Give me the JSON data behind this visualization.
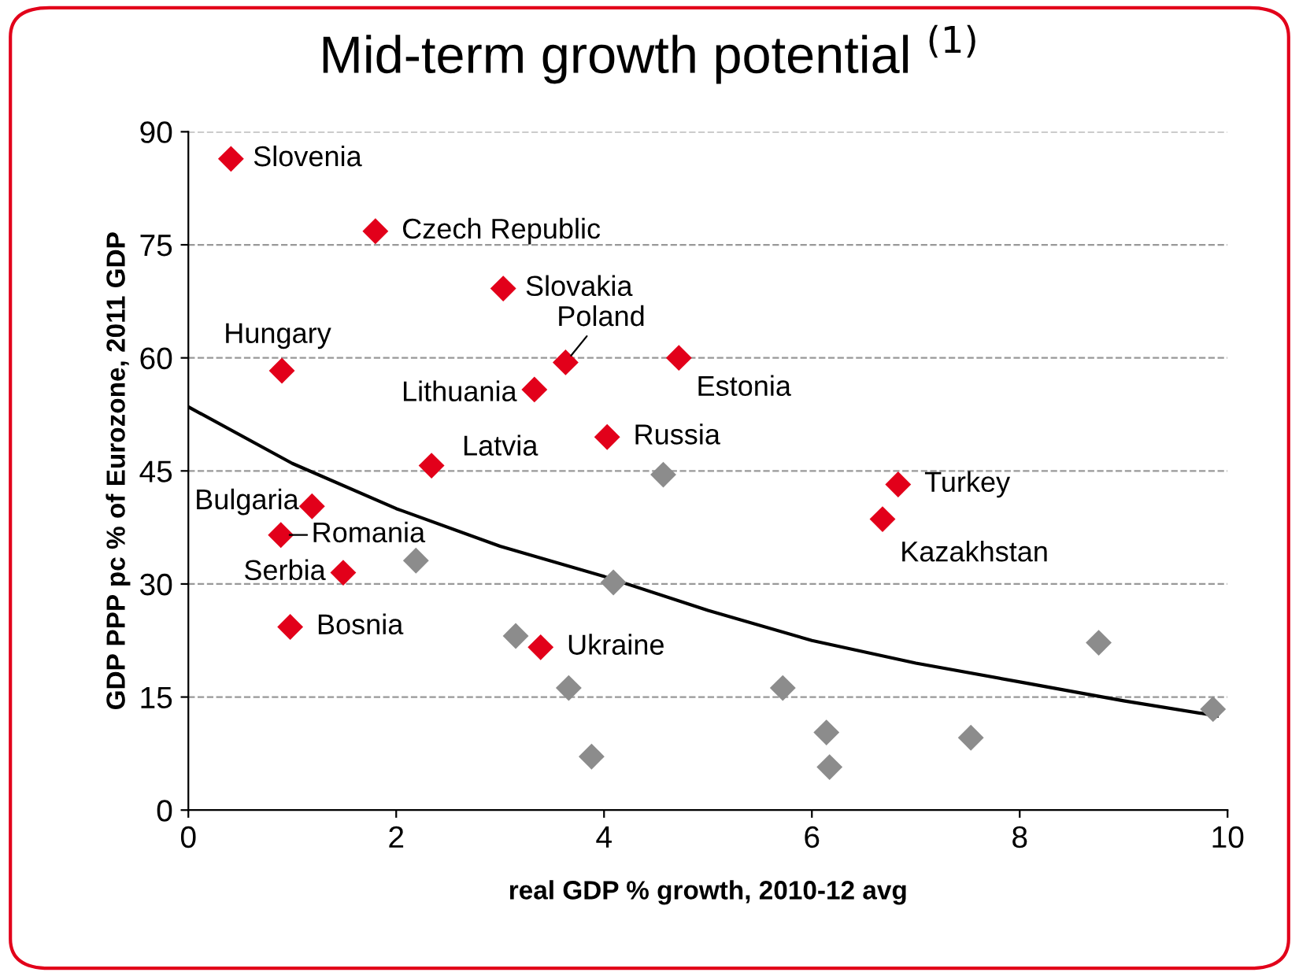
{
  "chart_data": {
    "type": "scatter",
    "title": "Mid-term growth potential $^{(1)}$",
    "xlabel": "real GDP % growth, 2010-12 avg",
    "ylabel": "GDP PPP pc % of Eurozone, 2011 GDP",
    "xlim": [
      0,
      10
    ],
    "xticks": [
      0,
      2,
      4,
      6,
      8,
      10
    ],
    "ylim": [
      0,
      90
    ],
    "yticks": [
      0,
      15,
      30,
      45,
      60,
      75,
      90
    ],
    "grid": "y",
    "legend": false,
    "marker": "diamond",
    "series": [
      {
        "color": "#e2001a",
        "x": [
          0.41,
          1.8,
          3.03,
          0.9,
          3.63,
          3.33,
          4.72,
          4.03,
          2.34,
          6.83,
          6.68,
          1.19,
          0.89,
          1.49,
          0.98,
          3.39
        ],
        "values": [
          86.4,
          76.8,
          69.2,
          58.3,
          59.4,
          55.8,
          60.0,
          49.5,
          45.7,
          43.2,
          38.6,
          40.3,
          36.5,
          31.5,
          24.3,
          21.6
        ]
      },
      {
        "color": "#8c8c8c",
        "x": [
          4.57,
          2.19,
          4.09,
          3.15,
          3.66,
          3.88,
          5.72,
          6.14,
          6.17,
          7.53,
          8.76,
          9.86
        ],
        "values": [
          44.5,
          33.1,
          30.2,
          23.1,
          16.2,
          7.1,
          16.2,
          10.3,
          5.7,
          9.6,
          22.2,
          13.4
        ]
      },
      {
        "type": "line",
        "color": "#000000",
        "marker": "none",
        "line_style": "solid",
        "x": [
          0,
          1,
          2,
          3,
          4,
          5,
          6,
          7,
          8,
          9,
          9.9
        ],
        "values": [
          53.5,
          46,
          40,
          35,
          31,
          26.5,
          22.5,
          19.5,
          17,
          14.5,
          12.5
        ]
      }
    ],
    "annotations": [
      {
        "text": "Slovenia",
        "x": 0.41,
        "y": 86.4
      },
      {
        "text": "Czech Republic",
        "x": 1.8,
        "y": 76.8
      },
      {
        "text": "Slovakia",
        "x": 3.03,
        "y": 69.2
      },
      {
        "text": "Hungary",
        "x": 0.9,
        "y": 58.3
      },
      {
        "text": "Poland",
        "x": 3.63,
        "y": 59.4
      },
      {
        "text": "Lithuania",
        "x": 3.33,
        "y": 55.8
      },
      {
        "text": "Estonia",
        "x": 4.72,
        "y": 60.0
      },
      {
        "text": "Russia",
        "x": 4.03,
        "y": 49.5
      },
      {
        "text": "Latvia",
        "x": 2.34,
        "y": 45.7
      },
      {
        "text": "Turkey",
        "x": 6.83,
        "y": 43.2
      },
      {
        "text": "Kazakhstan",
        "x": 6.68,
        "y": 38.6
      },
      {
        "text": "Bulgaria",
        "x": 1.19,
        "y": 40.3
      },
      {
        "text": "Romania",
        "x": 0.89,
        "y": 36.5
      },
      {
        "text": "Serbia",
        "x": 1.49,
        "y": 31.5
      },
      {
        "text": "Bosnia",
        "x": 0.98,
        "y": 24.3
      },
      {
        "text": "Ukraine",
        "x": 3.39,
        "y": 21.6
      }
    ]
  }
}
